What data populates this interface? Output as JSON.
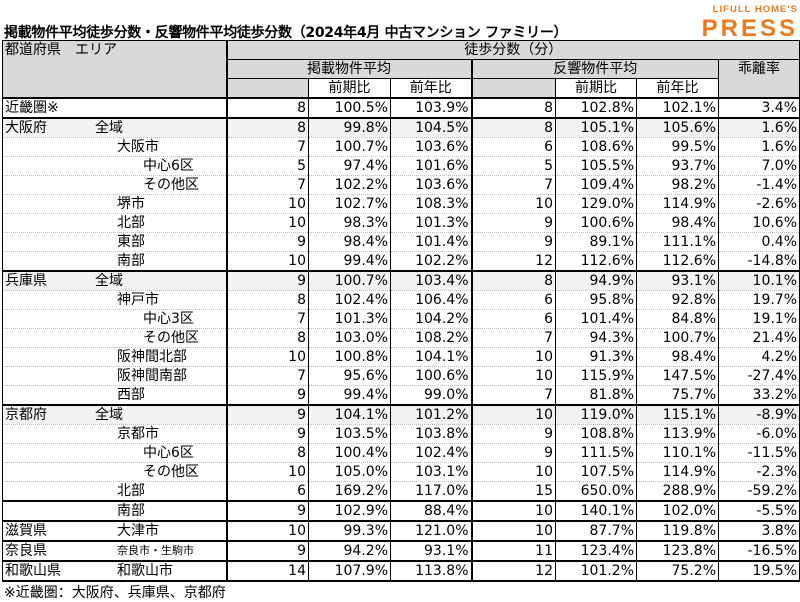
{
  "title": "掲載物件平均徒歩分数・反響物件平均徒歩分数（2024年4月 中古マンション ファミリー）",
  "logo": {
    "line1": "LIFULL HOME'S",
    "line2": "PRESS",
    "color": "#ee7a1f"
  },
  "header": {
    "area": "都道府県　エリア",
    "walk": "徒歩分数（分）",
    "listed": "掲載物件平均",
    "response": "反響物件平均",
    "divergence": "乖離率",
    "qoq": "前期比",
    "yoy": "前年比"
  },
  "rows": [
    {
      "pref": "近畿圏※",
      "area": "",
      "level": 0,
      "v": [
        "8",
        "100.5%",
        "103.9%",
        "8",
        "102.8%",
        "102.1%",
        "3.4%"
      ],
      "shade": false,
      "grp": true
    },
    {
      "pref": "大阪府",
      "area": "全域",
      "level": 0,
      "v": [
        "8",
        "99.8%",
        "104.5%",
        "8",
        "105.1%",
        "105.6%",
        "1.6%"
      ],
      "shade": true,
      "grp": true
    },
    {
      "pref": "",
      "area": "大阪市",
      "level": 1,
      "v": [
        "7",
        "100.7%",
        "103.6%",
        "6",
        "108.6%",
        "99.5%",
        "1.6%"
      ]
    },
    {
      "pref": "",
      "area": "中心6区",
      "level": 2,
      "v": [
        "5",
        "97.4%",
        "101.6%",
        "5",
        "105.5%",
        "93.7%",
        "7.0%"
      ]
    },
    {
      "pref": "",
      "area": "その他区",
      "level": 2,
      "v": [
        "7",
        "102.2%",
        "103.6%",
        "7",
        "109.4%",
        "98.2%",
        "-1.4%"
      ]
    },
    {
      "pref": "",
      "area": "堺市",
      "level": 1,
      "v": [
        "10",
        "102.7%",
        "108.3%",
        "10",
        "129.0%",
        "114.9%",
        "-2.6%"
      ]
    },
    {
      "pref": "",
      "area": "北部",
      "level": 1,
      "v": [
        "10",
        "98.3%",
        "101.3%",
        "9",
        "100.6%",
        "98.4%",
        "10.6%"
      ]
    },
    {
      "pref": "",
      "area": "東部",
      "level": 1,
      "v": [
        "9",
        "98.4%",
        "101.4%",
        "9",
        "89.1%",
        "111.1%",
        "0.4%"
      ]
    },
    {
      "pref": "",
      "area": "南部",
      "level": 1,
      "v": [
        "10",
        "99.4%",
        "102.2%",
        "12",
        "112.6%",
        "112.6%",
        "-14.8%"
      ]
    },
    {
      "pref": "兵庫県",
      "area": "全域",
      "level": 0,
      "v": [
        "9",
        "100.7%",
        "103.4%",
        "8",
        "94.9%",
        "93.1%",
        "10.1%"
      ],
      "shade": true,
      "grp": true
    },
    {
      "pref": "",
      "area": "神戸市",
      "level": 1,
      "v": [
        "8",
        "102.4%",
        "106.4%",
        "6",
        "95.8%",
        "92.8%",
        "19.7%"
      ]
    },
    {
      "pref": "",
      "area": "中心3区",
      "level": 2,
      "v": [
        "7",
        "101.3%",
        "104.2%",
        "6",
        "101.4%",
        "84.8%",
        "19.1%"
      ]
    },
    {
      "pref": "",
      "area": "その他区",
      "level": 2,
      "v": [
        "8",
        "103.0%",
        "108.2%",
        "7",
        "94.3%",
        "100.7%",
        "21.4%"
      ]
    },
    {
      "pref": "",
      "area": "阪神間北部",
      "level": 1,
      "v": [
        "10",
        "100.8%",
        "104.1%",
        "10",
        "91.3%",
        "98.4%",
        "4.2%"
      ]
    },
    {
      "pref": "",
      "area": "阪神間南部",
      "level": 1,
      "v": [
        "7",
        "95.6%",
        "100.6%",
        "10",
        "115.9%",
        "147.5%",
        "-27.4%"
      ]
    },
    {
      "pref": "",
      "area": "西部",
      "level": 1,
      "v": [
        "9",
        "99.4%",
        "99.0%",
        "7",
        "81.8%",
        "75.7%",
        "33.2%"
      ]
    },
    {
      "pref": "京都府",
      "area": "全域",
      "level": 0,
      "v": [
        "9",
        "104.1%",
        "101.2%",
        "10",
        "119.0%",
        "115.1%",
        "-8.9%"
      ],
      "shade": true,
      "grp": true
    },
    {
      "pref": "",
      "area": "京都市",
      "level": 1,
      "v": [
        "9",
        "103.5%",
        "103.8%",
        "9",
        "108.8%",
        "113.9%",
        "-6.0%"
      ]
    },
    {
      "pref": "",
      "area": "中心6区",
      "level": 2,
      "v": [
        "8",
        "100.4%",
        "102.4%",
        "9",
        "111.5%",
        "110.1%",
        "-11.5%"
      ]
    },
    {
      "pref": "",
      "area": "その他区",
      "level": 2,
      "v": [
        "10",
        "105.0%",
        "103.1%",
        "10",
        "107.5%",
        "114.9%",
        "-2.3%"
      ]
    },
    {
      "pref": "",
      "area": "北部",
      "level": 1,
      "v": [
        "6",
        "169.2%",
        "117.0%",
        "15",
        "650.0%",
        "288.9%",
        "-59.2%"
      ]
    },
    {
      "pref": "",
      "area": "南部",
      "level": 1,
      "v": [
        "9",
        "102.9%",
        "88.4%",
        "10",
        "140.1%",
        "102.0%",
        "-5.5%"
      ],
      "grp": true
    },
    {
      "pref": "滋賀県",
      "area": "大津市",
      "level": 1,
      "v": [
        "10",
        "99.3%",
        "121.0%",
        "10",
        "87.7%",
        "119.8%",
        "3.8%"
      ],
      "grp": true
    },
    {
      "pref": "奈良県",
      "area": "奈良市・生駒市",
      "level": 1,
      "small": true,
      "v": [
        "9",
        "94.2%",
        "93.1%",
        "11",
        "123.4%",
        "123.8%",
        "-16.5%"
      ],
      "grp": true
    },
    {
      "pref": "和歌山県",
      "area": "和歌山市",
      "level": 1,
      "v": [
        "14",
        "107.9%",
        "113.8%",
        "12",
        "101.2%",
        "75.2%",
        "19.5%"
      ],
      "grp": true
    }
  ],
  "footnote": "※近畿圏：大阪府、兵庫県、京都府"
}
